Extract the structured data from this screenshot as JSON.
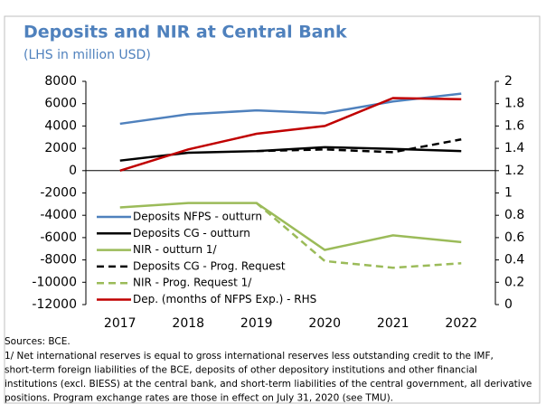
{
  "chart_data": {
    "type": "line",
    "title": "Deposits and NIR at Central Bank",
    "subtitle": "(LHS in million USD)",
    "categories": [
      "2017",
      "2018",
      "2019",
      "2020",
      "2021",
      "2022"
    ],
    "ylim": [
      -12000,
      8000
    ],
    "yticks": [
      -12000,
      -10000,
      -8000,
      -6000,
      -4000,
      -2000,
      0,
      2000,
      4000,
      6000,
      8000
    ],
    "y2lim": [
      0,
      2
    ],
    "y2ticks": [
      0,
      0.2,
      0.4,
      0.6,
      0.8,
      1,
      1.2,
      1.4,
      1.6,
      1.8,
      2
    ],
    "grid": false,
    "legend": "left",
    "series": [
      {
        "name": "Deposits NFPS - outturn",
        "color": "#4f81bd",
        "values": [
          4200,
          5050,
          5400,
          5150,
          6200,
          6900
        ]
      },
      {
        "name": "Deposits CG - outturn",
        "color": "#000000",
        "values": [
          900,
          1600,
          1750,
          2100,
          1950,
          1750
        ]
      },
      {
        "name": "NIR - outturn 1/",
        "color": "#9bbb59",
        "values": [
          -3300,
          -2900,
          -2900,
          -7100,
          -5800,
          -6400
        ]
      },
      {
        "name": "Deposits CG - Prog. Request",
        "color": "#000000",
        "dash": true,
        "values": [
          null,
          null,
          1750,
          1900,
          1650,
          2800
        ]
      },
      {
        "name": "NIR - Prog. Request 1/",
        "color": "#9bbb59",
        "dash": true,
        "values": [
          null,
          null,
          -2900,
          -8100,
          -8700,
          -8300
        ]
      },
      {
        "name": "Dep. (months of NFPS Exp.) - RHS",
        "color": "#c00000",
        "axis": "y2",
        "values": [
          1.2,
          1.39,
          1.53,
          1.6,
          1.85,
          1.84
        ]
      }
    ],
    "source": "Sources: BCE.",
    "notes": [
      "1/ Net international reserves is equal to gross international reserves less outstanding credit to the IMF,",
      "short-term foreign liabilities of the BCE, deposits of other depository institutions and other financial",
      "institutions (excl. BIESS) at the central bank, and short-term liabilities of the central government, all derivative",
      "positions. Program exchange rates are those in effect on July 31, 2020 (see TMU)."
    ]
  }
}
